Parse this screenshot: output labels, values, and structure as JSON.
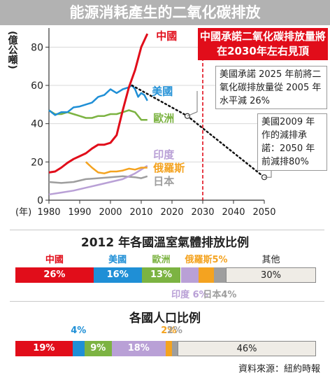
{
  "page_title": "能源消耗產生的二氧化碳排放",
  "source": "資料來源：紐約時報",
  "callouts": {
    "red": "中國承諾二氧化碳排放量將在2030年左右見頂",
    "us2025": "美國承諾 2025 年前將二氧化碳排放量從 2005 年水平減 26%",
    "us2009": "美國2009 年作的減排承諾：2050 年前減排80%"
  },
  "colors": {
    "china": "#e10d1a",
    "usa": "#1f8fd6",
    "europe": "#7cb342",
    "india": "#b9a0d6",
    "russia": "#f4a320",
    "japan": "#9e9e9e",
    "other": "#efece6"
  },
  "chart_data": [
    {
      "type": "line",
      "title": "",
      "ylabel": "(億公噸)",
      "xlabel": "(年)",
      "xlim": [
        1980,
        2050
      ],
      "ylim": [
        0,
        90
      ],
      "x_ticks": [
        "1980",
        "1990",
        "2000",
        "2010",
        "2020",
        "2030",
        "2040",
        "2050"
      ],
      "y_ticks": [
        "0",
        "20",
        "40",
        "60",
        "80"
      ],
      "series": [
        {
          "name": "中國",
          "key": "china",
          "x": [
            1980,
            1982,
            1984,
            1986,
            1988,
            1990,
            1992,
            1994,
            1996,
            1998,
            2000,
            2002,
            2004,
            2006,
            2008,
            2010,
            2012
          ],
          "values": [
            14.5,
            15,
            17,
            19.5,
            21.5,
            23,
            24.5,
            27,
            29,
            29,
            30,
            34,
            47,
            59,
            68,
            80,
            87
          ]
        },
        {
          "name": "美國",
          "key": "usa",
          "x": [
            1980,
            1982,
            1984,
            1986,
            1988,
            1990,
            1992,
            1994,
            1996,
            1998,
            2000,
            2002,
            2004,
            2006,
            2007,
            2008,
            2009,
            2010,
            2011,
            2012
          ],
          "values": [
            47,
            44.5,
            46,
            46,
            48.5,
            49,
            50,
            51,
            54,
            55,
            58,
            56,
            58,
            59,
            60,
            58,
            54,
            56,
            55,
            52
          ]
        },
        {
          "name": "歐洲",
          "key": "europe",
          "x": [
            1980,
            1982,
            1984,
            1986,
            1988,
            1990,
            1992,
            1994,
            1996,
            1998,
            2000,
            2002,
            2004,
            2006,
            2008,
            2010,
            2012
          ],
          "values": [
            47,
            45,
            45,
            46,
            45,
            44,
            43,
            43,
            44,
            44,
            45,
            45,
            46,
            47,
            46,
            42,
            42
          ]
        },
        {
          "name": "印度",
          "key": "india",
          "x": [
            1980,
            1984,
            1988,
            1992,
            1996,
            2000,
            2004,
            2008,
            2012
          ],
          "values": [
            3,
            4,
            5,
            6.5,
            8,
            9.5,
            11,
            14,
            18
          ]
        },
        {
          "name": "俄羅斯",
          "key": "russia",
          "x": [
            1992,
            1994,
            1996,
            1998,
            2000,
            2002,
            2004,
            2006,
            2008,
            2010,
            2012
          ],
          "values": [
            20,
            17,
            14.5,
            14,
            15,
            15,
            15.5,
            16.5,
            16,
            17,
            17
          ]
        },
        {
          "name": "日本",
          "key": "japan",
          "x": [
            1980,
            1984,
            1988,
            1992,
            1996,
            2000,
            2004,
            2008,
            2010,
            2012
          ],
          "values": [
            9.5,
            9,
            9.5,
            11,
            11.5,
            12,
            12.5,
            12,
            11.5,
            12.5
          ]
        }
      ],
      "projection": {
        "x": [
          2007,
          2025,
          2050
        ],
        "values": [
          60,
          44,
          12
        ]
      },
      "peak_marker_x": 2030
    },
    {
      "type": "bar",
      "title": "2012 年各國溫室氣體排放比例",
      "categories": [
        "中國",
        "美國",
        "歐洲",
        "印度",
        "俄羅斯",
        "日本",
        "其他"
      ],
      "keys": [
        "china",
        "usa",
        "europe",
        "india",
        "russia",
        "japan",
        "other"
      ],
      "values": [
        26,
        16,
        13,
        6,
        5,
        4,
        30
      ],
      "labels_top": {
        "china": "中國",
        "usa": "美國",
        "europe": "歐洲",
        "russia": "俄羅斯5%",
        "other": "其他"
      },
      "labels_in": {
        "china": "26%",
        "usa": "16%",
        "europe": "13%",
        "other": "30%"
      },
      "labels_bottom": {
        "india": "印度 6%",
        "japan": "日本4%"
      }
    },
    {
      "type": "bar",
      "title": "各國人口比例",
      "keys": [
        "china",
        "usa",
        "europe",
        "india",
        "russia",
        "japan",
        "other"
      ],
      "values": [
        19,
        4,
        9,
        18,
        2,
        2,
        46
      ],
      "labels_in": {
        "china": "19%",
        "europe": "9%",
        "india": "18%",
        "other": "46%"
      },
      "labels_top": {
        "usa": "4%",
        "russia": "2%",
        "japan": "2%"
      }
    }
  ]
}
